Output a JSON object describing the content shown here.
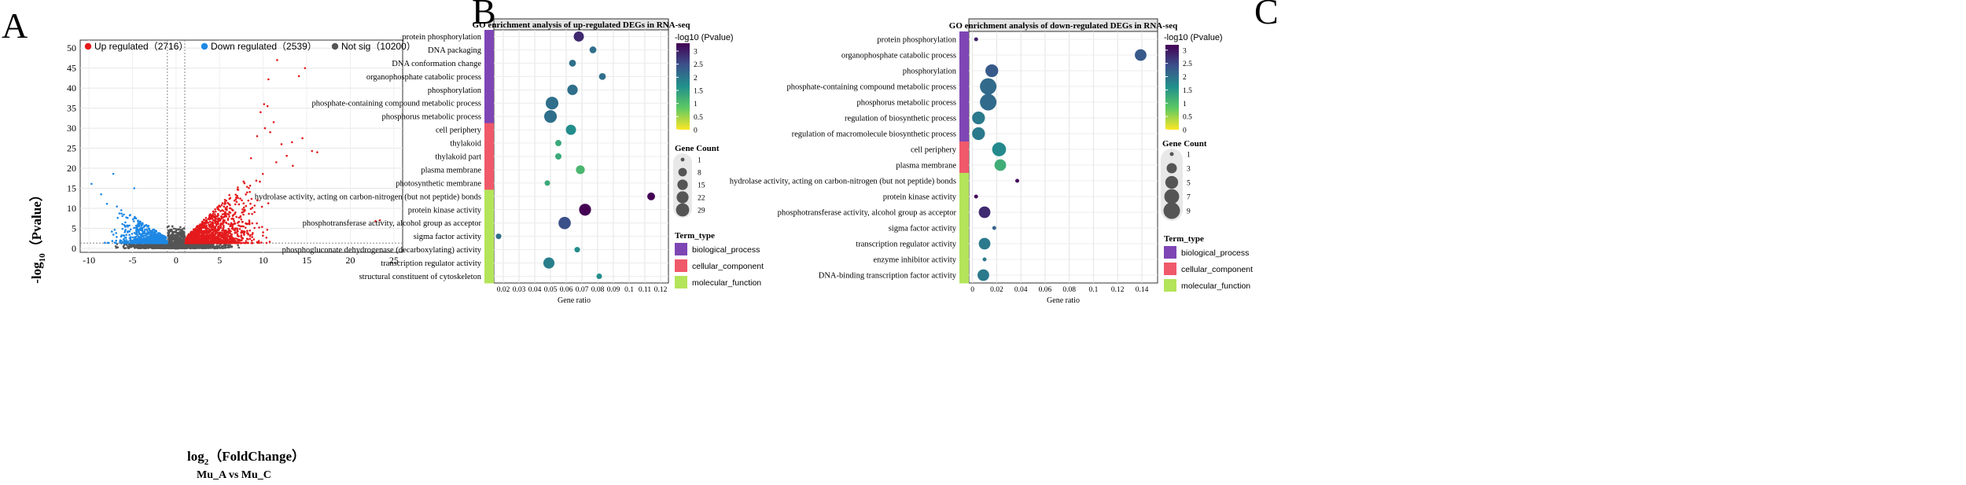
{
  "panels": {
    "a": "A",
    "b": "B",
    "c": "C"
  },
  "chart_data": [
    {
      "type": "scatter",
      "xlabel_base": "log",
      "xlabel_sub": "2",
      "xlabel_rest": "（FoldChange）",
      "ylabel_base": "-log",
      "ylabel_sub": "10",
      "ylabel_rest": "（Pvalue）",
      "subtitle": "Mu_A vs Mu_C",
      "xlim": [
        -11,
        26
      ],
      "ylim": [
        -1,
        52
      ],
      "xticks": [
        -10,
        -5,
        0,
        5,
        10,
        15,
        20,
        25
      ],
      "yticks": [
        0,
        5,
        10,
        15,
        20,
        25,
        30,
        35,
        40,
        45,
        50
      ],
      "fc_threshold": 1,
      "p_threshold_neglog": 1.3,
      "legend": [
        {
          "label": "Up regulated（2716）",
          "color": "#e41a1c"
        },
        {
          "label": "Down regulated（2539）",
          "color": "#1e88e5"
        },
        {
          "label": "Not sig（10200）",
          "color": "#555555"
        }
      ],
      "outliers": [
        [
          11.6,
          47
        ],
        [
          14.8,
          45
        ],
        [
          14.1,
          43
        ],
        [
          10.6,
          42.2
        ],
        [
          10.1,
          36
        ],
        [
          10.5,
          35.5
        ],
        [
          9.7,
          34
        ],
        [
          11.2,
          31.5
        ],
        [
          10.2,
          30
        ],
        [
          10.8,
          29
        ],
        [
          9.3,
          28
        ],
        [
          14.5,
          27.5
        ],
        [
          13.3,
          26.5
        ],
        [
          12.1,
          26
        ],
        [
          15.6,
          24.3
        ],
        [
          16.2,
          24
        ],
        [
          12.7,
          23.1
        ],
        [
          8.6,
          22.5
        ],
        [
          11.5,
          21.5
        ],
        [
          13.4,
          20.6
        ],
        [
          22.9,
          6.8
        ],
        [
          23.4,
          7.0
        ],
        [
          -7.2,
          18.6
        ],
        [
          -9.7,
          16.1
        ],
        [
          -4.8,
          15.0
        ],
        [
          -8.6,
          13.5
        ]
      ]
    },
    {
      "type": "scatter",
      "title": "GO enrichment analysis of up-regulated DEGs in RNA-seq",
      "xlabel": "Gene ratio",
      "xlim": [
        0.014,
        0.125
      ],
      "xticks": [
        0.02,
        0.03,
        0.04,
        0.05,
        0.06,
        0.07,
        0.08,
        0.09,
        0.1,
        0.11,
        0.12
      ],
      "xtick_labels": [
        "0.02",
        "0.03",
        "0.04",
        "0.05",
        "0.06",
        "0.07",
        "0.08",
        "0.09",
        "0.1",
        "0.11",
        "0.12"
      ],
      "color_label": "-log10 (Pvalue)",
      "color_range": [
        0,
        3.3
      ],
      "color_ticks": [
        "3",
        "2.5",
        "2",
        "1.5",
        "1",
        "0.5",
        "0"
      ],
      "color_tick_values": [
        3,
        2.5,
        2,
        1.5,
        1,
        0.5,
        0
      ],
      "size_label": "Gene Count",
      "size_legend": [
        1,
        8,
        15,
        22,
        29
      ],
      "size_range": [
        1,
        29
      ],
      "term_label": "Term_type",
      "term_types": [
        {
          "name": "biological_process",
          "color": "#7e46b4"
        },
        {
          "name": "cellular_component",
          "color": "#f0596a"
        },
        {
          "name": "molecular_function",
          "color": "#b3e45a"
        }
      ],
      "terms": [
        {
          "name": "protein phosphorylation",
          "ratio": 0.068,
          "count": 14,
          "p": 2.9,
          "type": 0
        },
        {
          "name": "DNA packaging",
          "ratio": 0.077,
          "count": 4,
          "p": 2.1,
          "type": 0
        },
        {
          "name": "DNA conformation change",
          "ratio": 0.064,
          "count": 4,
          "p": 2.1,
          "type": 0
        },
        {
          "name": "organophosphate catabolic process",
          "ratio": 0.083,
          "count": 4,
          "p": 2.1,
          "type": 0
        },
        {
          "name": "phosphorylation",
          "ratio": 0.064,
          "count": 15,
          "p": 2.1,
          "type": 0
        },
        {
          "name": "phosphate-containing compound metabolic process",
          "ratio": 0.051,
          "count": 26,
          "p": 2.1,
          "type": 0
        },
        {
          "name": "phosphorus metabolic process",
          "ratio": 0.05,
          "count": 26,
          "p": 2.1,
          "type": 0
        },
        {
          "name": "cell periphery",
          "ratio": 0.063,
          "count": 14,
          "p": 1.7,
          "type": 1
        },
        {
          "name": "thylakoid",
          "ratio": 0.055,
          "count": 3,
          "p": 1.3,
          "type": 1
        },
        {
          "name": "thylakoid part",
          "ratio": 0.055,
          "count": 3,
          "p": 1.3,
          "type": 1
        },
        {
          "name": "plasma membrane",
          "ratio": 0.069,
          "count": 9,
          "p": 1.1,
          "type": 1
        },
        {
          "name": "photosynthetic membrane",
          "ratio": 0.048,
          "count": 2,
          "p": 1.3,
          "type": 1
        },
        {
          "name": "hydrolase activity, acting on carbon-nitrogen (but not peptide) bonds",
          "ratio": 0.114,
          "count": 6,
          "p": 3.3,
          "type": 2
        },
        {
          "name": "protein kinase activity",
          "ratio": 0.072,
          "count": 22,
          "p": 3.3,
          "type": 2
        },
        {
          "name": "phosphotransferase activity, alcohol group as acceptor",
          "ratio": 0.059,
          "count": 24,
          "p": 2.5,
          "type": 2
        },
        {
          "name": "sigma factor activity",
          "ratio": 0.017,
          "count": 2,
          "p": 2.1,
          "type": 2
        },
        {
          "name": "phosphogluconate dehydrogenase (decarboxylating) activity",
          "ratio": 0.067,
          "count": 2,
          "p": 1.7,
          "type": 2
        },
        {
          "name": "transcription regulator activity",
          "ratio": 0.049,
          "count": 18,
          "p": 1.9,
          "type": 2
        },
        {
          "name": "structural constituent of cytoskeleton",
          "ratio": 0.081,
          "count": 2,
          "p": 1.7,
          "type": 2
        }
      ]
    },
    {
      "type": "scatter",
      "title": "GO enrichment analysis of down-regulated DEGs in RNA-seq",
      "xlabel": "Gene ratio",
      "xlim": [
        -0.003,
        0.153
      ],
      "xticks": [
        0,
        0.02,
        0.04,
        0.06,
        0.08,
        0.1,
        0.12,
        0.14
      ],
      "xtick_labels": [
        "0",
        "0.02",
        "0.04",
        "0.06",
        "0.08",
        "0.1",
        "0.12",
        "0.14"
      ],
      "color_label": "-log10 (Pvalue)",
      "color_range": [
        0,
        3.2
      ],
      "color_ticks": [
        "3",
        "2.5",
        "2",
        "1.5",
        "1",
        "0.5",
        "0"
      ],
      "color_tick_values": [
        3,
        2.5,
        2,
        1.5,
        1,
        0.5,
        0
      ],
      "size_label": "Gene Count",
      "size_legend": [
        1,
        3,
        5,
        7,
        9
      ],
      "size_range": [
        1,
        9
      ],
      "term_label": "Term_type",
      "term_types": [
        {
          "name": "biological_process",
          "color": "#7e46b4"
        },
        {
          "name": "cellular_component",
          "color": "#f0596a"
        },
        {
          "name": "molecular_function",
          "color": "#b3e45a"
        }
      ],
      "terms": [
        {
          "name": "protein phosphorylation",
          "ratio": 0.003,
          "count": 1,
          "p": 2.9,
          "type": 0
        },
        {
          "name": "organophosphate catabolic process",
          "ratio": 0.139,
          "count": 4,
          "p": 2.3,
          "type": 0
        },
        {
          "name": "phosphorylation",
          "ratio": 0.016,
          "count": 5,
          "p": 2.3,
          "type": 0
        },
        {
          "name": "phosphate-containing compound metabolic process",
          "ratio": 0.013,
          "count": 9,
          "p": 2.1,
          "type": 0
        },
        {
          "name": "phosphorus metabolic process",
          "ratio": 0.013,
          "count": 9,
          "p": 2.1,
          "type": 0
        },
        {
          "name": "regulation of biosynthetic process",
          "ratio": 0.005,
          "count": 5,
          "p": 1.9,
          "type": 0
        },
        {
          "name": "regulation of macromolecule biosynthetic process",
          "ratio": 0.005,
          "count": 5,
          "p": 1.9,
          "type": 0
        },
        {
          "name": "cell periphery",
          "ratio": 0.022,
          "count": 6,
          "p": 1.7,
          "type": 1
        },
        {
          "name": "plasma membrane",
          "ratio": 0.023,
          "count": 4,
          "p": 1.2,
          "type": 1
        },
        {
          "name": "hydrolase activity, acting on carbon-nitrogen (but not peptide) bonds",
          "ratio": 0.037,
          "count": 1,
          "p": 3.1,
          "type": 2
        },
        {
          "name": "protein kinase activity",
          "ratio": 0.003,
          "count": 1,
          "p": 3.1,
          "type": 2
        },
        {
          "name": "phosphotransferase activity, alcohol group as acceptor",
          "ratio": 0.01,
          "count": 4,
          "p": 2.8,
          "type": 2
        },
        {
          "name": "sigma factor activity",
          "ratio": 0.018,
          "count": 1,
          "p": 2.2,
          "type": 2
        },
        {
          "name": "transcription regulator activity",
          "ratio": 0.01,
          "count": 4,
          "p": 1.9,
          "type": 2
        },
        {
          "name": "enzyme inhibitor activity",
          "ratio": 0.01,
          "count": 1,
          "p": 1.9,
          "type": 2
        },
        {
          "name": "DNA-binding transcription factor activity",
          "ratio": 0.009,
          "count": 4,
          "p": 1.9,
          "type": 2
        }
      ]
    }
  ]
}
